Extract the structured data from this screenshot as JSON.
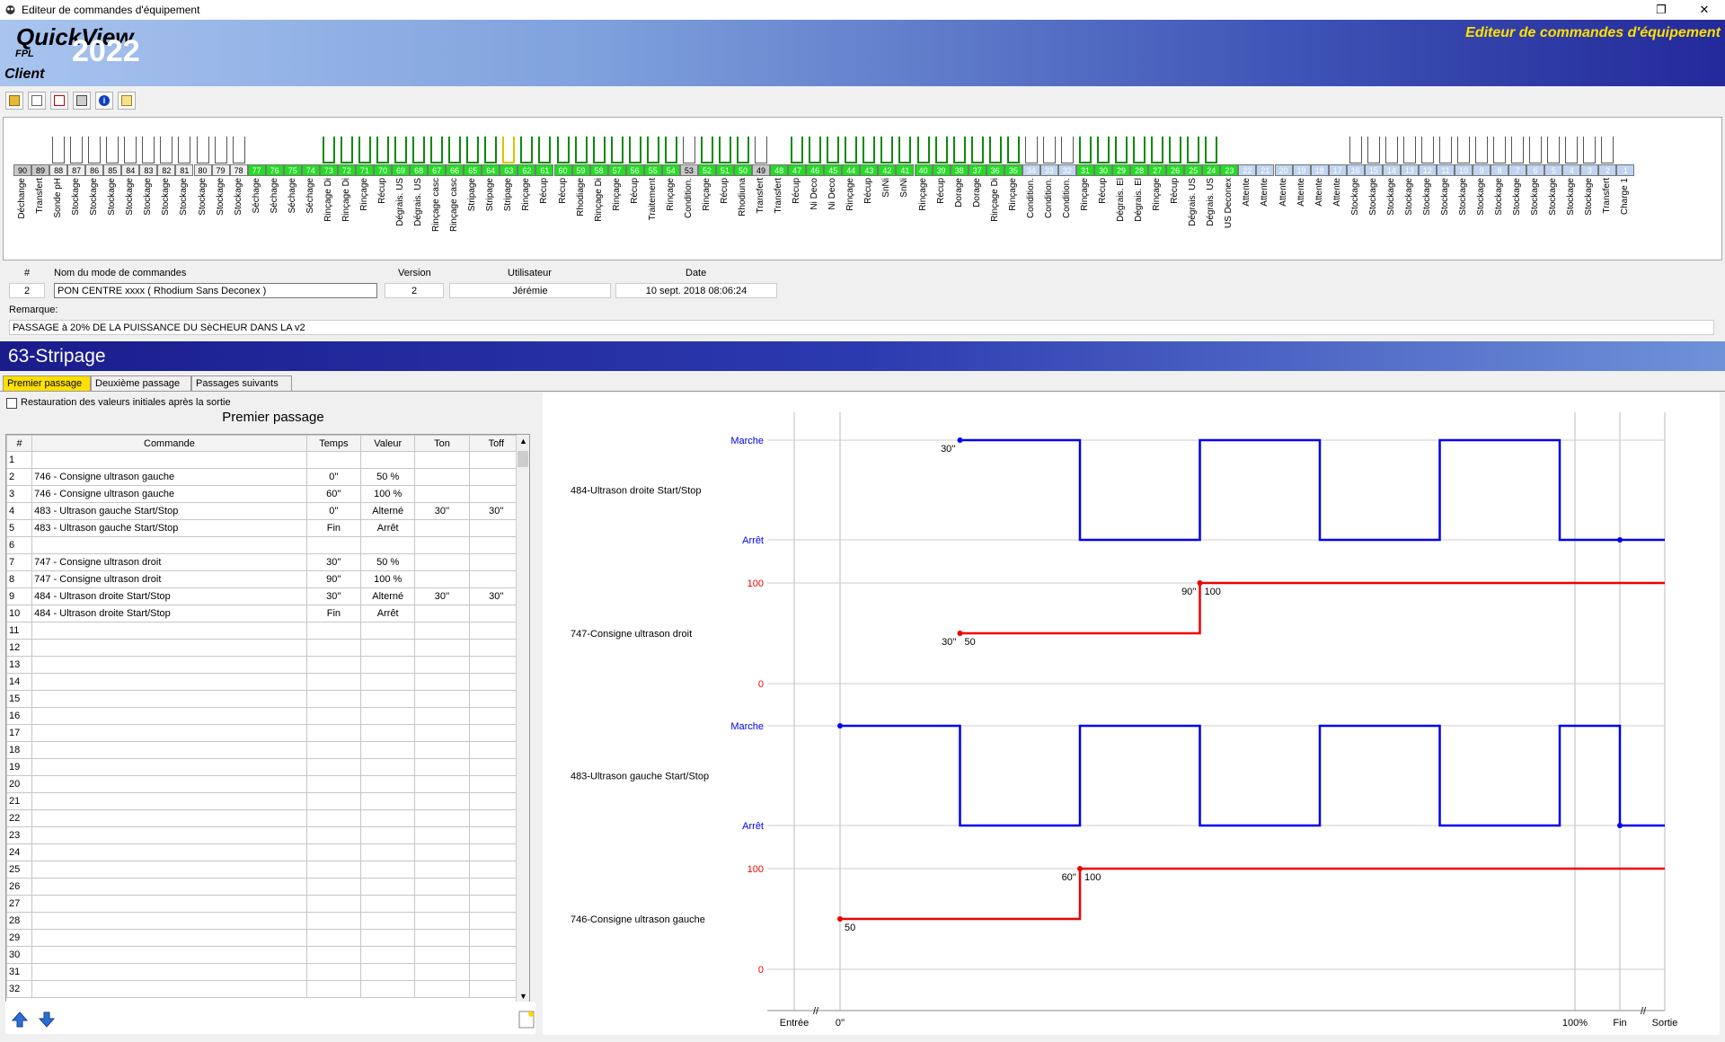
{
  "window": {
    "title": "Editeur de commandes d'équipement",
    "restore_icon": "restore-icon",
    "close_icon": "close-icon"
  },
  "banner": {
    "brand": "QuickView",
    "fpl": "FPL",
    "year": "2022",
    "client": "Client",
    "title": "Editeur de commandes d'équipement"
  },
  "toolbar": {
    "icons": [
      "open-folder-icon",
      "new-document-icon",
      "delete-document-icon",
      "print-icon",
      "info-icon",
      "properties-icon"
    ]
  },
  "tanks": [
    {
      "num": "90",
      "label": "Déchange",
      "st": "gray",
      "h": 0
    },
    {
      "num": "89",
      "label": "Transfert",
      "st": "gray",
      "h": 0
    },
    {
      "num": "88",
      "label": "Sonde pH",
      "st": "lt",
      "h": 1
    },
    {
      "num": "87",
      "label": "Stockage",
      "st": "lt",
      "h": 1
    },
    {
      "num": "86",
      "label": "Stockage",
      "st": "lt",
      "h": 1
    },
    {
      "num": "85",
      "label": "Stockage",
      "st": "lt",
      "h": 1
    },
    {
      "num": "84",
      "label": "Stockage",
      "st": "lt",
      "h": 1
    },
    {
      "num": "83",
      "label": "Stockage",
      "st": "lt",
      "h": 1
    },
    {
      "num": "82",
      "label": "Stockage",
      "st": "lt",
      "h": 1
    },
    {
      "num": "81",
      "label": "Stockage",
      "st": "lt",
      "h": 1
    },
    {
      "num": "80",
      "label": "Stockage",
      "st": "lt",
      "h": 1
    },
    {
      "num": "79",
      "label": "Stockage",
      "st": "lt",
      "h": 1
    },
    {
      "num": "78",
      "label": "Stockage",
      "st": "lt",
      "h": 1
    },
    {
      "num": "77",
      "label": "Séchage",
      "st": "green",
      "h": 0
    },
    {
      "num": "76",
      "label": "Séchage",
      "st": "green",
      "h": 0
    },
    {
      "num": "75",
      "label": "Séchage",
      "st": "green",
      "h": 0
    },
    {
      "num": "74",
      "label": "Séchage",
      "st": "green",
      "h": 0
    },
    {
      "num": "73",
      "label": "Rinçage Di",
      "st": "green",
      "h": 1
    },
    {
      "num": "72",
      "label": "Rinçage Di",
      "st": "green",
      "h": 1
    },
    {
      "num": "71",
      "label": "Rinçage",
      "st": "green",
      "h": 1
    },
    {
      "num": "70",
      "label": "Récup",
      "st": "green",
      "h": 1
    },
    {
      "num": "69",
      "label": "Dégrais. US",
      "st": "green",
      "h": 1
    },
    {
      "num": "68",
      "label": "Dégrais. US",
      "st": "green",
      "h": 1
    },
    {
      "num": "67",
      "label": "Rinçage casc",
      "st": "green",
      "h": 1
    },
    {
      "num": "66",
      "label": "Rinçage casc",
      "st": "green",
      "h": 1
    },
    {
      "num": "65",
      "label": "Stripage",
      "st": "green",
      "h": 1
    },
    {
      "num": "64",
      "label": "Stripage",
      "st": "green",
      "h": 1
    },
    {
      "num": "63",
      "label": "Stripage",
      "st": "green",
      "h": 2
    },
    {
      "num": "62",
      "label": "Rinçage",
      "st": "green",
      "h": 1
    },
    {
      "num": "61",
      "label": "Récup",
      "st": "green",
      "h": 1
    },
    {
      "num": "60",
      "label": "Récup",
      "st": "green",
      "h": 1
    },
    {
      "num": "59",
      "label": "Rhodiage",
      "st": "green",
      "h": 1
    },
    {
      "num": "58",
      "label": "Rinçage Di",
      "st": "green",
      "h": 1
    },
    {
      "num": "57",
      "label": "Rinçage",
      "st": "green",
      "h": 1
    },
    {
      "num": "56",
      "label": "Récup",
      "st": "green",
      "h": 1
    },
    {
      "num": "55",
      "label": "Traitement",
      "st": "green",
      "h": 1
    },
    {
      "num": "54",
      "label": "Rinçage",
      "st": "green",
      "h": 1
    },
    {
      "num": "53",
      "label": "Condition.",
      "st": "gray",
      "h": 1
    },
    {
      "num": "52",
      "label": "Rinçage",
      "st": "green",
      "h": 1
    },
    {
      "num": "51",
      "label": "Récup",
      "st": "green",
      "h": 1
    },
    {
      "num": "50",
      "label": "Rhodiuna",
      "st": "green",
      "h": 1
    },
    {
      "num": "49",
      "label": "Transfert",
      "st": "gray",
      "h": 1
    },
    {
      "num": "48",
      "label": "Transfert",
      "st": "green",
      "h": 0
    },
    {
      "num": "47",
      "label": "Récup",
      "st": "green",
      "h": 1
    },
    {
      "num": "46",
      "label": "Ni Deco",
      "st": "green",
      "h": 1
    },
    {
      "num": "45",
      "label": "Ni Deco",
      "st": "green",
      "h": 1
    },
    {
      "num": "44",
      "label": "Rinçage",
      "st": "green",
      "h": 1
    },
    {
      "num": "43",
      "label": "Récup",
      "st": "green",
      "h": 1
    },
    {
      "num": "42",
      "label": "SnNi",
      "st": "green",
      "h": 1
    },
    {
      "num": "41",
      "label": "SnNi",
      "st": "green",
      "h": 1
    },
    {
      "num": "40",
      "label": "Rinçage",
      "st": "green",
      "h": 1
    },
    {
      "num": "39",
      "label": "Récup",
      "st": "green",
      "h": 1
    },
    {
      "num": "38",
      "label": "Dorage",
      "st": "green",
      "h": 1
    },
    {
      "num": "37",
      "label": "Dorage",
      "st": "green",
      "h": 1
    },
    {
      "num": "36",
      "label": "Rinçage Di",
      "st": "green",
      "h": 1
    },
    {
      "num": "35",
      "label": "Rinçage",
      "st": "green",
      "h": 1
    },
    {
      "num": "34",
      "label": "Condition.",
      "st": "blue",
      "h": 1
    },
    {
      "num": "33",
      "label": "Condition.",
      "st": "blue",
      "h": 1
    },
    {
      "num": "32",
      "label": "Condition.",
      "st": "blue",
      "h": 1
    },
    {
      "num": "31",
      "label": "Rinçage",
      "st": "green",
      "h": 1
    },
    {
      "num": "30",
      "label": "Récup",
      "st": "green",
      "h": 1
    },
    {
      "num": "29",
      "label": "Dégrais. El",
      "st": "green",
      "h": 1
    },
    {
      "num": "28",
      "label": "Dégrais. El",
      "st": "green",
      "h": 1
    },
    {
      "num": "27",
      "label": "Rinçage",
      "st": "green",
      "h": 1
    },
    {
      "num": "26",
      "label": "Récup",
      "st": "green",
      "h": 1
    },
    {
      "num": "25",
      "label": "Dégrais. US",
      "st": "green",
      "h": 1
    },
    {
      "num": "24",
      "label": "Dégrais. US",
      "st": "green",
      "h": 1
    },
    {
      "num": "23",
      "label": "US Deconex",
      "st": "green",
      "h": 0
    },
    {
      "num": "22",
      "label": "Attente",
      "st": "blue",
      "h": 0
    },
    {
      "num": "21",
      "label": "Attente",
      "st": "blue",
      "h": 0
    },
    {
      "num": "20",
      "label": "Attente",
      "st": "blue",
      "h": 0
    },
    {
      "num": "19",
      "label": "Attente",
      "st": "blue",
      "h": 0
    },
    {
      "num": "18",
      "label": "Attente",
      "st": "blue",
      "h": 0
    },
    {
      "num": "17",
      "label": "Attente",
      "st": "blue",
      "h": 0
    },
    {
      "num": "16",
      "label": "Stockage",
      "st": "blue",
      "h": 1
    },
    {
      "num": "15",
      "label": "Stockage",
      "st": "blue",
      "h": 1
    },
    {
      "num": "14",
      "label": "Stockage",
      "st": "blue",
      "h": 1
    },
    {
      "num": "13",
      "label": "Stockage",
      "st": "blue",
      "h": 1
    },
    {
      "num": "12",
      "label": "Stockage",
      "st": "blue",
      "h": 1
    },
    {
      "num": "11",
      "label": "Stockage",
      "st": "blue",
      "h": 1
    },
    {
      "num": "10",
      "label": "Stockage",
      "st": "blue",
      "h": 1
    },
    {
      "num": "9",
      "label": "Stockage",
      "st": "blue",
      "h": 1
    },
    {
      "num": "8",
      "label": "Stockage",
      "st": "blue",
      "h": 1
    },
    {
      "num": "7",
      "label": "Stockage",
      "st": "blue",
      "h": 1
    },
    {
      "num": "6",
      "label": "Stockage",
      "st": "blue",
      "h": 1
    },
    {
      "num": "5",
      "label": "Stockage",
      "st": "blue",
      "h": 1
    },
    {
      "num": "4",
      "label": "Stockage",
      "st": "blue",
      "h": 1
    },
    {
      "num": "3",
      "label": "Stockage",
      "st": "blue",
      "h": 1
    },
    {
      "num": "2",
      "label": "Transfert",
      "st": "blue",
      "h": 1
    },
    {
      "num": "1",
      "label": "Charge 1",
      "st": "blue",
      "h": 0
    }
  ],
  "info": {
    "hdr_num": "#",
    "hdr_name": "Nom du mode de commandes",
    "hdr_version": "Version",
    "hdr_user": "Utilisateur",
    "hdr_date": "Date",
    "num": "2",
    "name": "PON CENTRE xxxx ( Rhodium Sans Deconex )",
    "version": "2",
    "user": "Jérémie",
    "date": "10 sept. 2018 08:06:24",
    "remark_label": "Remarque:",
    "remark": "PASSAGE à 20% DE LA PUISSANCE DU SèCHEUR DANS LA v2"
  },
  "section": {
    "title": "63-Stripage"
  },
  "tabs": [
    "Premier passage",
    "Deuxième passage",
    "Passages suivants"
  ],
  "restore_checkbox": "Restauration des valeurs initiales après la sortie",
  "table": {
    "title": "Premier passage",
    "headers": [
      "#",
      "Commande",
      "Temps",
      "Valeur",
      "Ton",
      "Toff"
    ],
    "rows": [
      [
        "1",
        "",
        "",
        "",
        "",
        ""
      ],
      [
        "2",
        "746 - Consigne ultrason gauche",
        "0''",
        "50 %",
        "",
        ""
      ],
      [
        "3",
        "746 - Consigne ultrason gauche",
        "60''",
        "100 %",
        "",
        ""
      ],
      [
        "4",
        "483 - Ultrason gauche Start/Stop",
        "0''",
        "Alterné",
        "30''",
        "30''"
      ],
      [
        "5",
        "483 - Ultrason gauche Start/Stop",
        "Fin",
        "Arrêt",
        "",
        ""
      ],
      [
        "6",
        "",
        "",
        "",
        "",
        ""
      ],
      [
        "7",
        "747 - Consigne ultrason droit",
        "30''",
        "50 %",
        "",
        ""
      ],
      [
        "8",
        "747 - Consigne ultrason droit",
        "90''",
        "100 %",
        "",
        ""
      ],
      [
        "9",
        "484 - Ultrason droite Start/Stop",
        "30''",
        "Alterné",
        "30''",
        "30''"
      ],
      [
        "10",
        "484 - Ultrason droite Start/Stop",
        "Fin",
        "Arrêt",
        "",
        ""
      ],
      [
        "11",
        "",
        "",
        "",
        "",
        ""
      ],
      [
        "12",
        "",
        "",
        "",
        "",
        ""
      ],
      [
        "13",
        "",
        "",
        "",
        "",
        ""
      ],
      [
        "14",
        "",
        "",
        "",
        "",
        ""
      ],
      [
        "15",
        "",
        "",
        "",
        "",
        ""
      ],
      [
        "16",
        "",
        "",
        "",
        "",
        ""
      ],
      [
        "17",
        "",
        "",
        "",
        "",
        ""
      ],
      [
        "18",
        "",
        "",
        "",
        "",
        ""
      ],
      [
        "19",
        "",
        "",
        "",
        "",
        ""
      ],
      [
        "20",
        "",
        "",
        "",
        "",
        ""
      ],
      [
        "21",
        "",
        "",
        "",
        "",
        ""
      ],
      [
        "22",
        "",
        "",
        "",
        "",
        ""
      ],
      [
        "23",
        "",
        "",
        "",
        "",
        ""
      ],
      [
        "24",
        "",
        "",
        "",
        "",
        ""
      ],
      [
        "25",
        "",
        "",
        "",
        "",
        ""
      ],
      [
        "26",
        "",
        "",
        "",
        "",
        ""
      ],
      [
        "27",
        "",
        "",
        "",
        "",
        ""
      ],
      [
        "28",
        "",
        "",
        "",
        "",
        ""
      ],
      [
        "29",
        "",
        "",
        "",
        "",
        ""
      ],
      [
        "30",
        "",
        "",
        "",
        "",
        ""
      ],
      [
        "31",
        "",
        "",
        "",
        "",
        ""
      ],
      [
        "32",
        "",
        "",
        "",
        "",
        ""
      ]
    ]
  },
  "chart_data": {
    "type": "line",
    "x_ticks": [
      "Entrée",
      "0''",
      "100%",
      "Fin",
      "Sortie"
    ],
    "tracks": [
      {
        "name": "484-Ultrason droite Start/Stop",
        "kind": "onoff",
        "high": "Marche",
        "low": "Arrêt",
        "color": "#0000ee",
        "points": [
          [
            30,
            1
          ],
          [
            60,
            1
          ],
          [
            60,
            0
          ],
          [
            90,
            0
          ],
          [
            90,
            1
          ],
          [
            120,
            1
          ],
          [
            120,
            0
          ],
          [
            150,
            0
          ],
          [
            150,
            1
          ],
          [
            180,
            1
          ],
          [
            180,
            0
          ],
          "fin"
        ],
        "labels": [
          {
            "t": 30,
            "text": "30''"
          }
        ]
      },
      {
        "name": "747-Consigne ultrason droit",
        "kind": "level",
        "top": "100",
        "bottom": "0",
        "color": "#ee0000",
        "points": [
          [
            30,
            50
          ],
          [
            90,
            50
          ],
          [
            90,
            100
          ]
        ],
        "labels": [
          {
            "t": 30,
            "text": "30''",
            "v": "50"
          },
          {
            "t": 90,
            "text": "90''",
            "v": "100"
          }
        ]
      },
      {
        "name": "483-Ultrason gauche Start/Stop",
        "kind": "onoff",
        "high": "Marche",
        "low": "Arrêt",
        "color": "#0000ee",
        "points": [
          [
            0,
            1
          ],
          [
            30,
            1
          ],
          [
            30,
            0
          ],
          [
            60,
            0
          ],
          [
            60,
            1
          ],
          [
            90,
            1
          ],
          [
            90,
            0
          ],
          [
            120,
            0
          ],
          [
            120,
            1
          ],
          [
            150,
            1
          ],
          [
            150,
            0
          ],
          [
            180,
            0
          ],
          [
            180,
            1
          ],
          "fin"
        ],
        "labels": []
      },
      {
        "name": "746-Consigne ultrason gauche",
        "kind": "level",
        "top": "100",
        "bottom": "0",
        "color": "#ee0000",
        "points": [
          [
            0,
            50
          ],
          [
            60,
            50
          ],
          [
            60,
            100
          ]
        ],
        "labels": [
          {
            "t": 0,
            "text": "",
            "v": "50"
          },
          {
            "t": 60,
            "text": "60''",
            "v": "100"
          }
        ]
      }
    ]
  }
}
